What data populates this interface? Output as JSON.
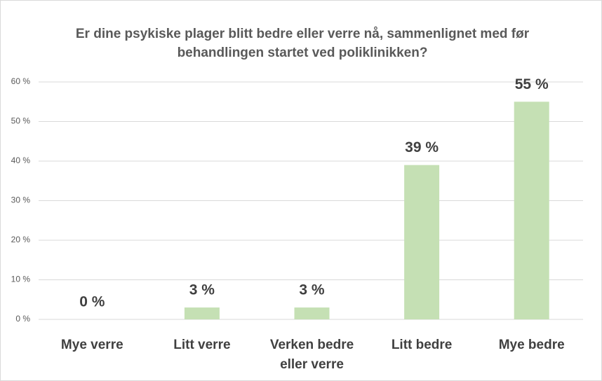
{
  "chart_data": {
    "type": "bar",
    "title": "Er dine psykiske plager blitt bedre eller verre nå, sammenlignet med før behandlingen startet ved poliklinikken?",
    "categories": [
      "Mye verre",
      "Litt verre",
      "Verken bedre eller verre",
      "Litt bedre",
      "Mye bedre"
    ],
    "values": [
      0,
      3,
      3,
      39,
      55
    ],
    "value_labels": [
      "0 %",
      "3 %",
      "3 %",
      "39 %",
      "55 %"
    ],
    "color": "#c5e0b4",
    "ylim": [
      0,
      60
    ],
    "yticks": [
      {
        "value": 0,
        "label": "0 %"
      },
      {
        "value": 10,
        "label": "10 %"
      },
      {
        "value": 20,
        "label": "20 %"
      },
      {
        "value": 30,
        "label": "30 %"
      },
      {
        "value": 40,
        "label": "40 %"
      },
      {
        "value": 50,
        "label": "50 %"
      },
      {
        "value": 60,
        "label": "60 %"
      }
    ],
    "grid": true
  }
}
